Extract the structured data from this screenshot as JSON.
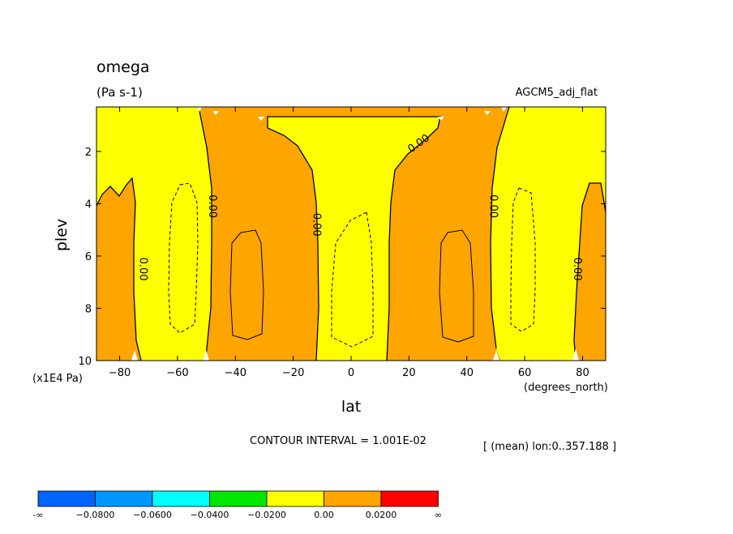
{
  "chart_data": {
    "type": "contour",
    "title": "omega",
    "units": "(Pa s-1)",
    "experiment": "AGCM5_adj_flat",
    "xlabel": "lat",
    "x_units": "(degrees_north)",
    "ylabel": "plev",
    "y_units": "(x1E4 Pa)",
    "xlim": [
      -88,
      88
    ],
    "ylim": [
      10,
      0.3
    ],
    "x_ticks": [
      -80,
      -60,
      -40,
      -20,
      0,
      20,
      40,
      60,
      80
    ],
    "x_tick_labels": [
      "−80",
      "−60",
      "−40",
      "−20",
      "0",
      "20",
      "40",
      "60",
      "80"
    ],
    "y_ticks": [
      2,
      4,
      6,
      8,
      10
    ],
    "y_tick_labels": [
      "2",
      "4",
      "6",
      "8",
      "10"
    ],
    "contour_interval_text": "CONTOUR INTERVAL = 1.001E-02",
    "mean_text": "[ (mean) lon:0..357.188 ]",
    "contour_labels": [
      {
        "text": "0.00",
        "lat": -73,
        "plev": 6.5
      },
      {
        "text": "0.00",
        "lat": -49,
        "plev": 4.1
      },
      {
        "text": "0.00",
        "lat": -13,
        "plev": 4.8
      },
      {
        "text": "0.00",
        "lat": 24,
        "plev": 1.8
      },
      {
        "text": "0.00",
        "lat": 48,
        "plev": 4.1
      },
      {
        "text": "0.00",
        "lat": 77,
        "plev": 6.5
      }
    ],
    "colorbar": {
      "colors": [
        "#0064ff",
        "#0096ff",
        "#00ffff",
        "#00e600",
        "#ffff00",
        "#ffa500",
        "#ff0000"
      ],
      "labels": [
        "-∞",
        "−0.0800",
        "−0.0600",
        "−0.0400",
        "−0.0200",
        "0.00",
        "0.0200",
        "∞"
      ]
    }
  }
}
